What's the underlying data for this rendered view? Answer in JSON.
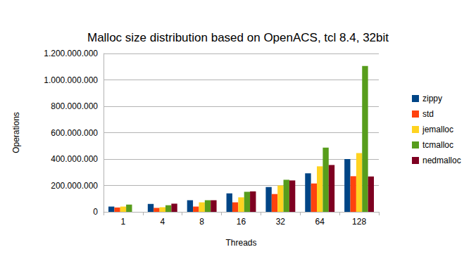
{
  "chart_data": {
    "type": "bar",
    "title": "Malloc size distribution based on OpenACS, tcl 8.4, 32bit",
    "x_label": "Threads",
    "y_label": "Operations",
    "categories": [
      "1",
      "4",
      "8",
      "16",
      "32",
      "64",
      "128"
    ],
    "series": [
      {
        "name": "zippy",
        "color": "#004586",
        "values": [
          40000000,
          60000000,
          88000000,
          140000000,
          188000000,
          292000000,
          400000000
        ]
      },
      {
        "name": "std",
        "color": "#ff420e",
        "values": [
          33000000,
          30000000,
          40000000,
          72000000,
          135000000,
          215000000,
          270000000
        ]
      },
      {
        "name": "jemalloc",
        "color": "#ffd320",
        "values": [
          40000000,
          35000000,
          72000000,
          110000000,
          200000000,
          345000000,
          445000000
        ]
      },
      {
        "name": "tcmalloc",
        "color": "#579d1c",
        "values": [
          55000000,
          50000000,
          88000000,
          152000000,
          243000000,
          487000000,
          1105000000
        ]
      },
      {
        "name": "nedmalloc",
        "color": "#7e0021",
        "values": [
          null,
          62000000,
          88000000,
          155000000,
          238000000,
          355000000,
          268000000
        ]
      }
    ],
    "ylim": [
      0,
      1200000000
    ],
    "yticks": [
      0,
      {
        "value": 200000000,
        "label": "200.000.000"
      },
      {
        "value": 400000000,
        "label": "400.000.000"
      },
      {
        "value": 600000000,
        "label": "600.000.000"
      },
      {
        "value": 800000000,
        "label": "800.000.000"
      },
      {
        "value": 1000000000,
        "label": "1.000.000.000"
      },
      {
        "value": 1200000000,
        "label": "1.200.000.000"
      }
    ],
    "grid": true,
    "legend": "right"
  }
}
